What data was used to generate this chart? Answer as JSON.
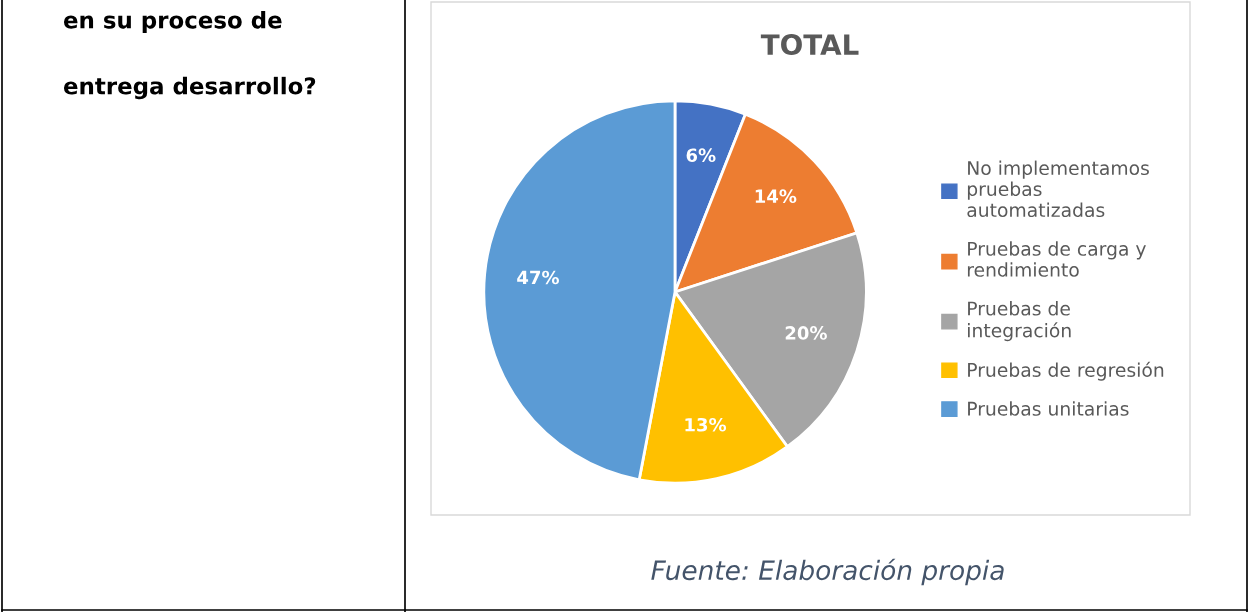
{
  "chart_data": {
    "type": "pie",
    "title": "TOTAL",
    "categories": [
      "No implementamos pruebas automatizadas",
      "Pruebas de carga y rendimiento",
      "Pruebas de integración",
      "Pruebas de regresión",
      "Pruebas unitarias"
    ],
    "values": [
      6,
      14,
      20,
      13,
      47
    ],
    "colors": [
      "#4472c4",
      "#ed7d31",
      "#a5a5a5",
      "#ffc000",
      "#5b9bd5"
    ],
    "value_labels": [
      "6%",
      "14%",
      "20%",
      "13%",
      "47%"
    ],
    "legend": "right",
    "annotations": [
      "en su proceso de",
      "entrega desarrollo?",
      "Fuente: Elaboración propia"
    ]
  }
}
